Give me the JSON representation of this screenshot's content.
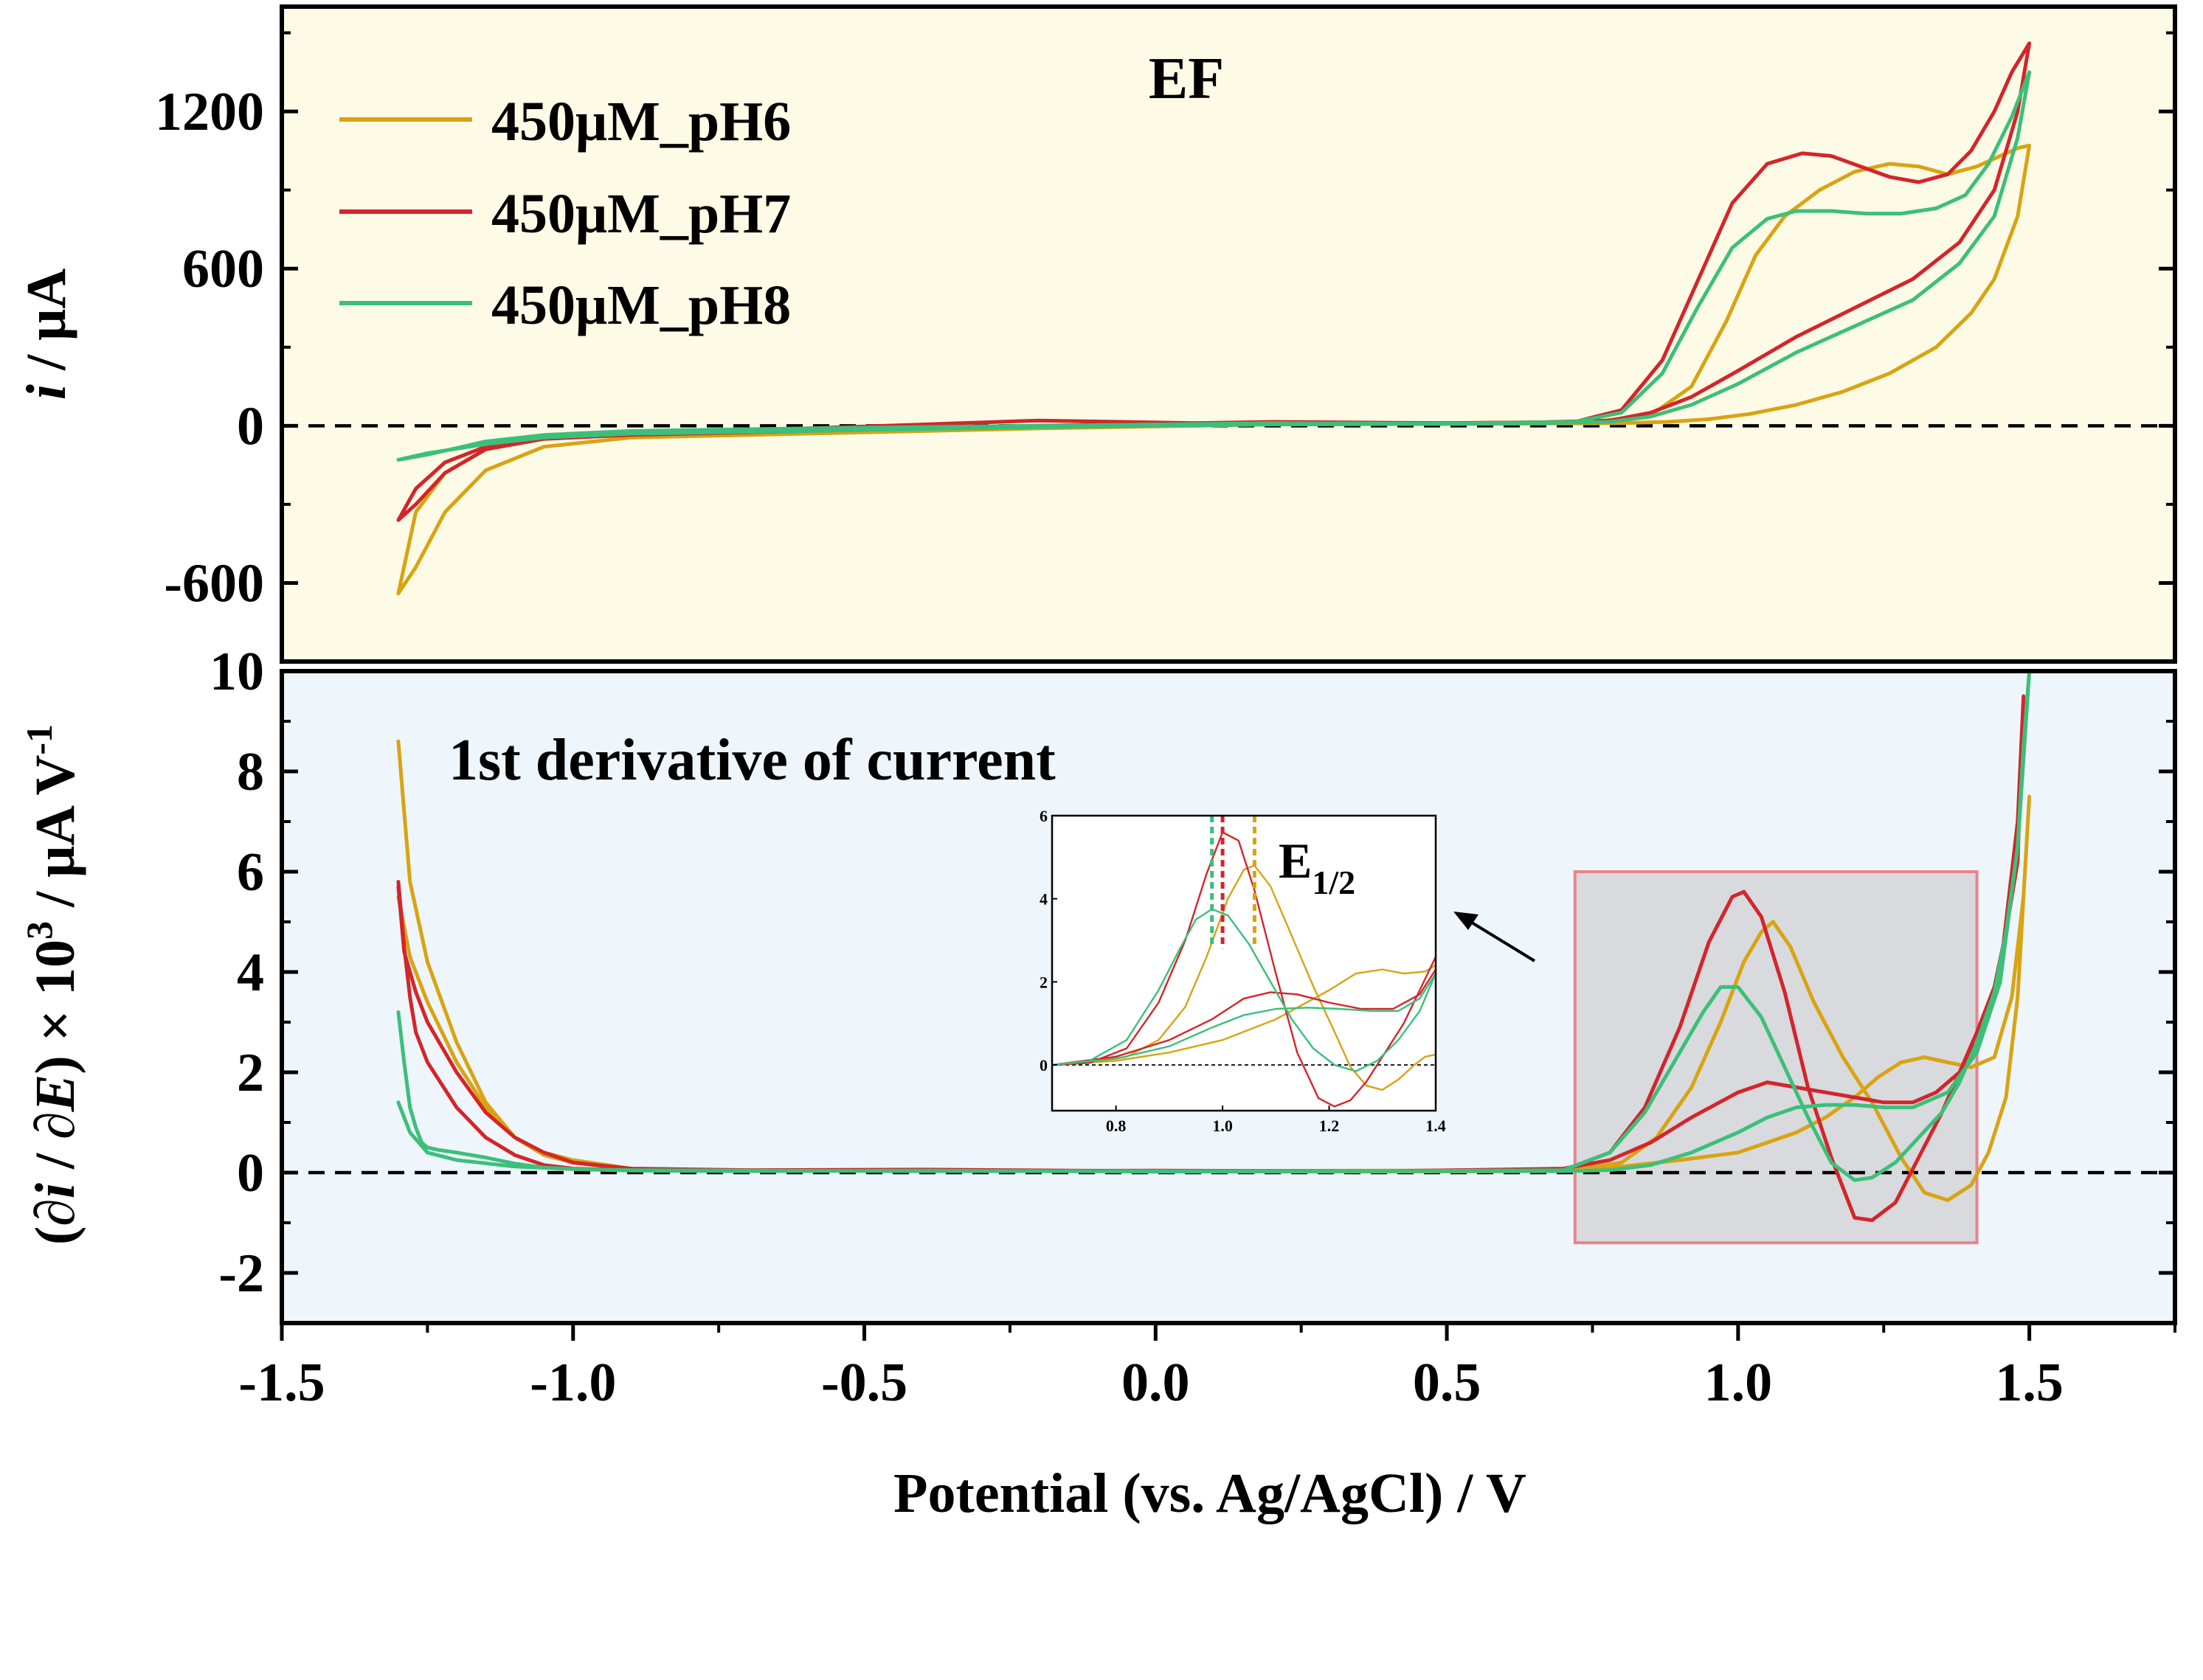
{
  "chart_data": [
    {
      "type": "line",
      "panel": "top",
      "title": "EF",
      "ylabel": "i / μA",
      "ylabel_parts": [
        "i",
        " / μA"
      ],
      "xlim": [
        -1.5,
        1.75
      ],
      "ylim": [
        -900,
        1600
      ],
      "background": "#fdfbe6",
      "yticks": [
        -600,
        0,
        600,
        1200
      ],
      "ytick_labels": [
        "-600",
        "0",
        "600",
        "1200"
      ],
      "grid": false,
      "legend": "top-left",
      "zero_line": "dashed",
      "series": [
        {
          "name": "450μM_pH6",
          "color": "#d9a312",
          "x": [
            -1.3,
            -1.27,
            -1.22,
            -1.15,
            -1.05,
            -0.9,
            -0.6,
            -0.2,
            0.2,
            0.5,
            0.75,
            0.85,
            0.92,
            0.98,
            1.03,
            1.08,
            1.14,
            1.2,
            1.26,
            1.31,
            1.36,
            1.41,
            1.45,
            1.48,
            1.5,
            1.48,
            1.44,
            1.4,
            1.34,
            1.26,
            1.18,
            1.1,
            1.02,
            0.95,
            0.88,
            0.8,
            0.6,
            0.2,
            -0.2,
            -0.6,
            -0.9,
            -1.05,
            -1.15,
            -1.22,
            -1.27,
            -1.3
          ],
          "y": [
            -640,
            -540,
            -330,
            -170,
            -80,
            -45,
            -30,
            -10,
            5,
            10,
            15,
            40,
            150,
            400,
            650,
            800,
            900,
            970,
            1000,
            990,
            960,
            990,
            1030,
            1060,
            1070,
            800,
            560,
            430,
            300,
            200,
            130,
            80,
            45,
            25,
            15,
            10,
            8,
            5,
            0,
            -15,
            -30,
            -50,
            -90,
            -180,
            -330,
            -640
          ]
        },
        {
          "name": "450μM_pH7",
          "color": "#d3252b",
          "x": [
            -1.3,
            -1.27,
            -1.22,
            -1.15,
            -1.05,
            -0.9,
            -0.6,
            -0.2,
            0.2,
            0.5,
            0.72,
            0.8,
            0.87,
            0.93,
            0.99,
            1.05,
            1.11,
            1.16,
            1.21,
            1.26,
            1.31,
            1.36,
            1.4,
            1.44,
            1.47,
            1.5,
            1.48,
            1.44,
            1.38,
            1.3,
            1.2,
            1.1,
            1.0,
            0.92,
            0.85,
            0.78,
            0.6,
            0.2,
            -0.2,
            -0.6,
            -0.9,
            -1.05,
            -1.15,
            -1.22,
            -1.27,
            -1.3
          ],
          "y": [
            -360,
            -300,
            -180,
            -90,
            -50,
            -35,
            -20,
            0,
            15,
            10,
            15,
            60,
            250,
            550,
            850,
            1000,
            1040,
            1030,
            990,
            950,
            930,
            960,
            1050,
            1200,
            1350,
            1460,
            1200,
            900,
            700,
            560,
            450,
            340,
            210,
            110,
            50,
            20,
            10,
            5,
            20,
            -10,
            -30,
            -50,
            -80,
            -140,
            -240,
            -360
          ]
        },
        {
          "name": "450μM_pH8",
          "color": "#3cbf7a",
          "x": [
            -1.3,
            -1.25,
            -1.15,
            -1.05,
            -0.9,
            -0.6,
            -0.2,
            0.2,
            0.5,
            0.72,
            0.8,
            0.87,
            0.93,
            0.99,
            1.05,
            1.1,
            1.16,
            1.22,
            1.28,
            1.34,
            1.39,
            1.43,
            1.47,
            1.5,
            1.48,
            1.44,
            1.38,
            1.3,
            1.2,
            1.1,
            1.0,
            0.92,
            0.85,
            0.78,
            0.6,
            0.2,
            -0.2,
            -0.6,
            -0.9,
            -1.05,
            -1.15,
            -1.25,
            -1.3
          ],
          "y": [
            -130,
            -110,
            -60,
            -35,
            -20,
            -10,
            0,
            10,
            8,
            15,
            50,
            200,
            450,
            680,
            790,
            820,
            820,
            810,
            810,
            830,
            880,
            1000,
            1180,
            1350,
            1100,
            800,
            620,
            480,
            380,
            280,
            160,
            80,
            35,
            15,
            8,
            5,
            -5,
            -20,
            -30,
            -45,
            -70,
            -105,
            -130
          ]
        }
      ]
    },
    {
      "type": "line",
      "panel": "bottom",
      "title": "1st derivative of current",
      "ylabel": "(∂i / ∂E) × 10^3 / μA V^-1",
      "ylabel_parts": [
        "(∂",
        "i",
        " / ∂",
        "E",
        ") × 10",
        "3",
        " / μA V",
        "-1"
      ],
      "xlabel": "Potential (vs. Ag/AgCl)  / V",
      "xlim": [
        -1.5,
        1.75
      ],
      "ylim": [
        -3,
        10
      ],
      "background": "#eef6fc",
      "xticks": [
        -1.5,
        -1.0,
        -0.5,
        0.0,
        0.5,
        1.0,
        1.5
      ],
      "xtick_labels": [
        "-1.5",
        "-1.0",
        "-0.5",
        "0.0",
        "0.5",
        "1.0",
        "1.5"
      ],
      "yticks": [
        -2,
        0,
        2,
        4,
        6,
        8,
        10
      ],
      "ytick_labels": [
        "-2",
        "0",
        "2",
        "4",
        "6",
        "8",
        "10"
      ],
      "grid": false,
      "zero_line": "dashed",
      "highlight_region": {
        "x": [
          0.72,
          1.41
        ],
        "y": [
          -1.4,
          6.0
        ],
        "fill": "#d8dadd",
        "stroke": "#e8848a"
      },
      "series": [
        {
          "name": "450μM_pH6",
          "color": "#d9a312",
          "x": [
            -1.3,
            -1.28,
            -1.25,
            -1.2,
            -1.15,
            -1.1,
            -1.05,
            -1.0,
            -0.9,
            -0.7,
            -0.4,
            0.0,
            0.4,
            0.7,
            0.8,
            0.86,
            0.92,
            0.97,
            1.01,
            1.04,
            1.06,
            1.09,
            1.13,
            1.18,
            1.23,
            1.28,
            1.32,
            1.36,
            1.4,
            1.43,
            1.46,
            1.48,
            1.5,
            1.49,
            1.47,
            1.44,
            1.4,
            1.36,
            1.32,
            1.28,
            1.24,
            1.2,
            1.15,
            1.1,
            1.05,
            1.0,
            0.9,
            0.8,
            0.7,
            0.4,
            0.0,
            -0.4,
            -0.7,
            -0.9,
            -1.0,
            -1.05,
            -1.1,
            -1.15,
            -1.2,
            -1.25,
            -1.28,
            -1.3
          ],
          "y": [
            8.6,
            5.8,
            4.2,
            2.6,
            1.4,
            0.7,
            0.35,
            0.2,
            0.06,
            0.03,
            0.05,
            0.02,
            0.02,
            0.03,
            0.2,
            0.7,
            1.7,
            3.0,
            4.2,
            4.8,
            5.0,
            4.5,
            3.4,
            2.3,
            1.4,
            0.3,
            -0.4,
            -0.55,
            -0.25,
            0.4,
            1.5,
            3.5,
            7.5,
            5.5,
            3.5,
            2.3,
            2.1,
            2.2,
            2.3,
            2.2,
            1.9,
            1.5,
            1.1,
            0.8,
            0.6,
            0.4,
            0.25,
            0.12,
            0.05,
            0.04,
            0.03,
            0.05,
            0.04,
            0.08,
            0.25,
            0.4,
            0.7,
            1.3,
            2.2,
            3.4,
            4.3,
            5.5
          ]
        },
        {
          "name": "450μM_pH7",
          "color": "#d3252b",
          "x": [
            -1.3,
            -1.29,
            -1.28,
            -1.27,
            -1.25,
            -1.2,
            -1.15,
            -1.1,
            -1.05,
            -1.0,
            -0.9,
            -0.7,
            -0.4,
            0.0,
            0.4,
            0.7,
            0.78,
            0.84,
            0.9,
            0.95,
            0.99,
            1.01,
            1.04,
            1.08,
            1.12,
            1.16,
            1.2,
            1.23,
            1.27,
            1.31,
            1.35,
            1.38,
            1.41,
            1.44,
            1.46,
            1.48,
            1.49,
            1.48,
            1.45,
            1.42,
            1.38,
            1.34,
            1.3,
            1.25,
            1.2,
            1.15,
            1.1,
            1.05,
            1.0,
            0.92,
            0.85,
            0.78,
            0.7,
            0.4,
            0.0,
            -0.4,
            -0.7,
            -0.9,
            -1.0,
            -1.05,
            -1.1,
            -1.15,
            -1.2,
            -1.25,
            -1.27,
            -1.28,
            -1.29,
            -1.3
          ],
          "y": [
            5.8,
            4.5,
            3.5,
            2.8,
            2.2,
            1.3,
            0.7,
            0.35,
            0.15,
            0.08,
            0.05,
            0.05,
            0.06,
            0.03,
            0.03,
            0.05,
            0.4,
            1.3,
            2.9,
            4.6,
            5.5,
            5.6,
            5.1,
            3.6,
            1.7,
            0.3,
            -0.9,
            -0.95,
            -0.6,
            0.3,
            1.2,
            2.0,
            2.8,
            3.7,
            4.8,
            6.2,
            9.5,
            7.0,
            4.0,
            2.8,
            2.0,
            1.6,
            1.4,
            1.4,
            1.5,
            1.6,
            1.7,
            1.8,
            1.6,
            1.1,
            0.6,
            0.25,
            0.08,
            0.03,
            0.04,
            0.03,
            0.05,
            0.08,
            0.2,
            0.4,
            0.7,
            1.2,
            2.0,
            3.0,
            3.6,
            4.0,
            4.4,
            5.7
          ]
        },
        {
          "name": "450μM_pH8",
          "color": "#3cbf7a",
          "x": [
            -1.3,
            -1.29,
            -1.28,
            -1.27,
            -1.26,
            -1.25,
            -1.23,
            -1.2,
            -1.15,
            -1.1,
            -1.05,
            -1.0,
            -0.9,
            -0.7,
            -0.4,
            0.0,
            0.4,
            0.7,
            0.78,
            0.84,
            0.9,
            0.94,
            0.97,
            1.0,
            1.04,
            1.08,
            1.12,
            1.16,
            1.2,
            1.23,
            1.27,
            1.31,
            1.35,
            1.38,
            1.41,
            1.44,
            1.46,
            1.48,
            1.49,
            1.5,
            1.48,
            1.45,
            1.41,
            1.36,
            1.3,
            1.25,
            1.2,
            1.15,
            1.1,
            1.05,
            1.0,
            0.92,
            0.85,
            0.78,
            0.7,
            0.4,
            0.0,
            -0.4,
            -0.7,
            -0.9,
            -1.0,
            -1.1,
            -1.2,
            -1.25,
            -1.28,
            -1.3
          ],
          "y": [
            3.2,
            2.2,
            1.3,
            0.9,
            0.6,
            0.5,
            0.45,
            0.4,
            0.3,
            0.18,
            0.1,
            0.07,
            0.04,
            0.03,
            0.04,
            0.02,
            0.03,
            0.05,
            0.4,
            1.2,
            2.4,
            3.2,
            3.7,
            3.7,
            3.1,
            2.1,
            1.1,
            0.2,
            -0.15,
            -0.1,
            0.2,
            0.7,
            1.2,
            1.8,
            2.6,
            3.6,
            4.8,
            6.5,
            8.5,
            10.0,
            6.5,
            3.8,
            2.4,
            1.6,
            1.3,
            1.3,
            1.35,
            1.35,
            1.3,
            1.1,
            0.8,
            0.4,
            0.15,
            0.05,
            0.03,
            0.03,
            0.03,
            0.03,
            0.04,
            0.05,
            0.07,
            0.12,
            0.25,
            0.4,
            0.8,
            1.4
          ]
        }
      ]
    },
    {
      "type": "line",
      "panel": "inset",
      "title": "E1/2",
      "title_parts": [
        "E",
        "1/2"
      ],
      "xlim": [
        0.68,
        1.4
      ],
      "ylim": [
        -1.1,
        6.0
      ],
      "xticks": [
        0.8,
        1.0,
        1.2,
        1.4
      ],
      "xtick_labels": [
        "0.8",
        "1.0",
        "1.2",
        "1.4"
      ],
      "yticks": [
        0,
        2,
        4,
        6
      ],
      "ytick_labels": [
        "0",
        "2",
        "4",
        "6"
      ],
      "zero_line": "dashed",
      "e_half_markers": [
        {
          "series": "450μM_pH6",
          "x": 1.06,
          "color": "#d9a312"
        },
        {
          "series": "450μM_pH7",
          "x": 1.0,
          "color": "#d3252b"
        },
        {
          "series": "450μM_pH8",
          "x": 0.98,
          "color": "#3cbf7a"
        }
      ],
      "series": [
        {
          "name": "450μM_pH6",
          "color": "#d9a312",
          "forward": {
            "x": [
              0.68,
              0.75,
              0.82,
              0.88,
              0.93,
              0.97,
              1.01,
              1.04,
              1.06,
              1.09,
              1.13,
              1.17,
              1.21,
              1.24,
              1.27,
              1.3,
              1.33,
              1.36,
              1.38,
              1.4
            ],
            "y": [
              0.0,
              0.05,
              0.2,
              0.6,
              1.4,
              2.6,
              4.0,
              4.7,
              4.8,
              4.3,
              3.1,
              1.9,
              0.8,
              -0.05,
              -0.5,
              -0.6,
              -0.35,
              0.0,
              0.2,
              0.25
            ]
          },
          "reverse": {
            "x": [
              0.68,
              0.8,
              0.9,
              1.0,
              1.1,
              1.2,
              1.25,
              1.3,
              1.34,
              1.38,
              1.4
            ],
            "y": [
              0.0,
              0.1,
              0.3,
              0.6,
              1.1,
              1.8,
              2.2,
              2.3,
              2.2,
              2.25,
              2.4
            ]
          }
        },
        {
          "name": "450μM_pH7",
          "color": "#d3252b",
          "forward": {
            "x": [
              0.68,
              0.75,
              0.82,
              0.88,
              0.93,
              0.97,
              1.0,
              1.03,
              1.06,
              1.1,
              1.14,
              1.18,
              1.21,
              1.24,
              1.27,
              1.3,
              1.34,
              1.37,
              1.4
            ],
            "y": [
              0.0,
              0.05,
              0.4,
              1.5,
              3.0,
              4.6,
              5.6,
              5.4,
              4.2,
              2.2,
              0.3,
              -0.8,
              -1.0,
              -0.85,
              -0.4,
              0.2,
              1.0,
              1.8,
              2.6
            ]
          },
          "reverse": {
            "x": [
              0.68,
              0.8,
              0.9,
              0.98,
              1.04,
              1.09,
              1.14,
              1.2,
              1.26,
              1.32,
              1.37,
              1.4
            ],
            "y": [
              0.0,
              0.2,
              0.6,
              1.1,
              1.6,
              1.75,
              1.7,
              1.5,
              1.35,
              1.35,
              1.7,
              2.3
            ]
          }
        },
        {
          "name": "450μM_pH8",
          "color": "#3cbf7a",
          "forward": {
            "x": [
              0.68,
              0.75,
              0.82,
              0.88,
              0.92,
              0.95,
              0.98,
              1.01,
              1.05,
              1.09,
              1.13,
              1.17,
              1.21,
              1.25,
              1.29,
              1.33,
              1.37,
              1.4
            ],
            "y": [
              0.0,
              0.1,
              0.6,
              1.8,
              2.8,
              3.5,
              3.75,
              3.6,
              2.9,
              2.0,
              1.1,
              0.4,
              0.0,
              -0.15,
              0.1,
              0.6,
              1.3,
              2.2
            ]
          },
          "reverse": {
            "x": [
              0.68,
              0.8,
              0.9,
              0.98,
              1.04,
              1.1,
              1.16,
              1.22,
              1.28,
              1.33,
              1.37,
              1.4
            ],
            "y": [
              0.0,
              0.15,
              0.45,
              0.9,
              1.2,
              1.35,
              1.38,
              1.35,
              1.3,
              1.3,
              1.6,
              2.2
            ]
          }
        }
      ]
    }
  ]
}
